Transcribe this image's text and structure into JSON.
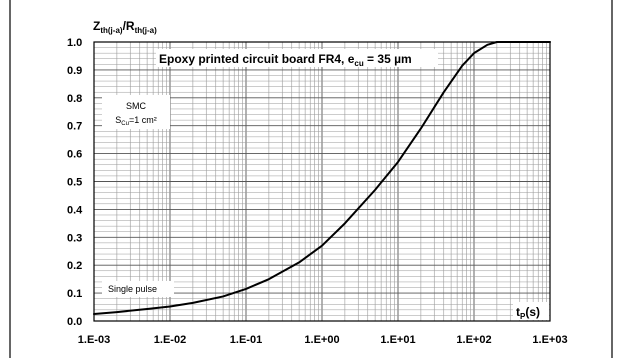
{
  "chart_data": {
    "type": "line",
    "title_parts": {
      "main": "Epoxy printed circuit board FR4, e",
      "sub": "cu",
      "tail": " = 35 µm"
    },
    "ylabel_parts": {
      "z": "Z",
      "z_sub": "th(j-a)",
      "slash": "/R",
      "r_sub": "th(j-a)"
    },
    "xlabel_parts": {
      "t": "t",
      "t_sub": "P",
      "unit": "(s)"
    },
    "x_scale": "log",
    "xlim": [
      0.001,
      1000
    ],
    "ylim": [
      0,
      1.0
    ],
    "x_ticks": [
      {
        "value": 0.001,
        "label": "1.E-03"
      },
      {
        "value": 0.01,
        "label": "1.E-02"
      },
      {
        "value": 0.1,
        "label": "1.E-01"
      },
      {
        "value": 1,
        "label": "1.E+00"
      },
      {
        "value": 10,
        "label": "1.E+01"
      },
      {
        "value": 100,
        "label": "1.E+02"
      },
      {
        "value": 1000,
        "label": "1.E+03"
      }
    ],
    "y_ticks": [
      {
        "value": 0.0,
        "label": "0.0"
      },
      {
        "value": 0.1,
        "label": "0.1"
      },
      {
        "value": 0.2,
        "label": "0.2"
      },
      {
        "value": 0.3,
        "label": "0.3"
      },
      {
        "value": 0.4,
        "label": "0.4"
      },
      {
        "value": 0.5,
        "label": "0.5"
      },
      {
        "value": 0.6,
        "label": "0.6"
      },
      {
        "value": 0.7,
        "label": "0.7"
      },
      {
        "value": 0.8,
        "label": "0.8"
      },
      {
        "value": 0.9,
        "label": "0.9"
      },
      {
        "value": 1.0,
        "label": "1.0"
      }
    ],
    "grid": true,
    "annotations": {
      "smc": {
        "line1": "SMC",
        "s": "S",
        "s_sub": "Cu",
        "tail": "=1 cm²"
      },
      "pulse": "Single pulse"
    },
    "series": [
      {
        "x": [
          0.001,
          0.002,
          0.005,
          0.01,
          0.02,
          0.05,
          0.1,
          0.2,
          0.5,
          1,
          2,
          5,
          10,
          20,
          40,
          70,
          100,
          150,
          200,
          300,
          500,
          1000
        ],
        "y": [
          0.025,
          0.032,
          0.043,
          0.052,
          0.065,
          0.088,
          0.115,
          0.15,
          0.21,
          0.27,
          0.35,
          0.47,
          0.57,
          0.69,
          0.82,
          0.915,
          0.96,
          0.99,
          1.0,
          1.0,
          1.0,
          1.0
        ]
      }
    ],
    "colors": {
      "line": "#000000",
      "grid": "#9a9a9a",
      "frame": "#000000"
    }
  }
}
